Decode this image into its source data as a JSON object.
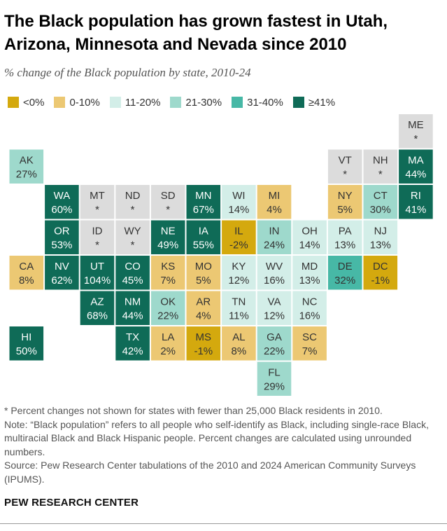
{
  "title": "The Black population has grown fastest in Utah, Arizona, Minnesota and Nevada since 2010",
  "subtitle": "% change of the Black population by state, 2010-24",
  "colors": {
    "lt0": "#d4a90e",
    "b0_10": "#ecc873",
    "b11_20": "#d3eee8",
    "b21_30": "#9ed9cc",
    "b31_40": "#47b8a6",
    "ge41": "#0f6b57",
    "na": "#dcdcdc"
  },
  "legend": [
    {
      "label": "<0%",
      "color_key": "lt0"
    },
    {
      "label": "0-10%",
      "color_key": "b0_10"
    },
    {
      "label": "11-20%",
      "color_key": "b11_20"
    },
    {
      "label": "21-30%",
      "color_key": "b21_30"
    },
    {
      "label": "31-40%",
      "color_key": "b31_40"
    },
    {
      "label": "≥41%",
      "color_key": "ge41"
    }
  ],
  "chart_data": {
    "type": "tile-map",
    "states": [
      {
        "abbr": "ME",
        "value": null,
        "label": "*",
        "row": 0,
        "col": 11
      },
      {
        "abbr": "AK",
        "value": 27,
        "label": "27%",
        "row": 1,
        "col": 0
      },
      {
        "abbr": "VT",
        "value": null,
        "label": "*",
        "row": 1,
        "col": 9
      },
      {
        "abbr": "NH",
        "value": null,
        "label": "*",
        "row": 1,
        "col": 10
      },
      {
        "abbr": "MA",
        "value": 44,
        "label": "44%",
        "row": 1,
        "col": 11
      },
      {
        "abbr": "WA",
        "value": 60,
        "label": "60%",
        "row": 2,
        "col": 1
      },
      {
        "abbr": "MT",
        "value": null,
        "label": "*",
        "row": 2,
        "col": 2
      },
      {
        "abbr": "ND",
        "value": null,
        "label": "*",
        "row": 2,
        "col": 3
      },
      {
        "abbr": "SD",
        "value": null,
        "label": "*",
        "row": 2,
        "col": 4
      },
      {
        "abbr": "MN",
        "value": 67,
        "label": "67%",
        "row": 2,
        "col": 5
      },
      {
        "abbr": "WI",
        "value": 14,
        "label": "14%",
        "row": 2,
        "col": 6
      },
      {
        "abbr": "MI",
        "value": 4,
        "label": "4%",
        "row": 2,
        "col": 7
      },
      {
        "abbr": "NY",
        "value": 5,
        "label": "5%",
        "row": 2,
        "col": 9
      },
      {
        "abbr": "CT",
        "value": 30,
        "label": "30%",
        "row": 2,
        "col": 10
      },
      {
        "abbr": "RI",
        "value": 41,
        "label": "41%",
        "row": 2,
        "col": 11
      },
      {
        "abbr": "OR",
        "value": 53,
        "label": "53%",
        "row": 3,
        "col": 1
      },
      {
        "abbr": "ID",
        "value": null,
        "label": "*",
        "row": 3,
        "col": 2
      },
      {
        "abbr": "WY",
        "value": null,
        "label": "*",
        "row": 3,
        "col": 3
      },
      {
        "abbr": "NE",
        "value": 49,
        "label": "49%",
        "row": 3,
        "col": 4
      },
      {
        "abbr": "IA",
        "value": 55,
        "label": "55%",
        "row": 3,
        "col": 5
      },
      {
        "abbr": "IL",
        "value": -2,
        "label": "-2%",
        "row": 3,
        "col": 6
      },
      {
        "abbr": "IN",
        "value": 24,
        "label": "24%",
        "row": 3,
        "col": 7
      },
      {
        "abbr": "OH",
        "value": 14,
        "label": "14%",
        "row": 3,
        "col": 8
      },
      {
        "abbr": "PA",
        "value": 13,
        "label": "13%",
        "row": 3,
        "col": 9
      },
      {
        "abbr": "NJ",
        "value": 13,
        "label": "13%",
        "row": 3,
        "col": 10
      },
      {
        "abbr": "CA",
        "value": 8,
        "label": "8%",
        "row": 4,
        "col": 0
      },
      {
        "abbr": "NV",
        "value": 62,
        "label": "62%",
        "row": 4,
        "col": 1
      },
      {
        "abbr": "UT",
        "value": 104,
        "label": "104%",
        "row": 4,
        "col": 2
      },
      {
        "abbr": "CO",
        "value": 45,
        "label": "45%",
        "row": 4,
        "col": 3
      },
      {
        "abbr": "KS",
        "value": 7,
        "label": "7%",
        "row": 4,
        "col": 4
      },
      {
        "abbr": "MO",
        "value": 5,
        "label": "5%",
        "row": 4,
        "col": 5
      },
      {
        "abbr": "KY",
        "value": 12,
        "label": "12%",
        "row": 4,
        "col": 6
      },
      {
        "abbr": "WV",
        "value": 16,
        "label": "16%",
        "row": 4,
        "col": 7
      },
      {
        "abbr": "MD",
        "value": 13,
        "label": "13%",
        "row": 4,
        "col": 8
      },
      {
        "abbr": "DE",
        "value": 32,
        "label": "32%",
        "row": 4,
        "col": 9
      },
      {
        "abbr": "DC",
        "value": -1,
        "label": "-1%",
        "row": 4,
        "col": 10
      },
      {
        "abbr": "AZ",
        "value": 68,
        "label": "68%",
        "row": 5,
        "col": 2
      },
      {
        "abbr": "NM",
        "value": 44,
        "label": "44%",
        "row": 5,
        "col": 3
      },
      {
        "abbr": "OK",
        "value": 22,
        "label": "22%",
        "row": 5,
        "col": 4
      },
      {
        "abbr": "AR",
        "value": 4,
        "label": "4%",
        "row": 5,
        "col": 5
      },
      {
        "abbr": "TN",
        "value": 11,
        "label": "11%",
        "row": 5,
        "col": 6
      },
      {
        "abbr": "VA",
        "value": 12,
        "label": "12%",
        "row": 5,
        "col": 7
      },
      {
        "abbr": "NC",
        "value": 16,
        "label": "16%",
        "row": 5,
        "col": 8
      },
      {
        "abbr": "HI",
        "value": 50,
        "label": "50%",
        "row": 6,
        "col": 0
      },
      {
        "abbr": "TX",
        "value": 42,
        "label": "42%",
        "row": 6,
        "col": 3
      },
      {
        "abbr": "LA",
        "value": 2,
        "label": "2%",
        "row": 6,
        "col": 4
      },
      {
        "abbr": "MS",
        "value": -1,
        "label": "-1%",
        "row": 6,
        "col": 5
      },
      {
        "abbr": "AL",
        "value": 8,
        "label": "8%",
        "row": 6,
        "col": 6
      },
      {
        "abbr": "GA",
        "value": 22,
        "label": "22%",
        "row": 6,
        "col": 7
      },
      {
        "abbr": "SC",
        "value": 7,
        "label": "7%",
        "row": 6,
        "col": 8
      },
      {
        "abbr": "FL",
        "value": 29,
        "label": "29%",
        "row": 7,
        "col": 7
      }
    ]
  },
  "footnotes": [
    "* Percent changes not shown for states with fewer than 25,000 Black residents in 2010.",
    "Note: “Black population” refers to all people who self-identify as Black, including single-race Black, multiracial Black and Black Hispanic people. Percent changes are calculated using unrounded numbers.",
    "Source: Pew Research Center tabulations of the 2010 and 2024 American Community Surveys (IPUMS)."
  ],
  "brand": "PEW RESEARCH CENTER"
}
